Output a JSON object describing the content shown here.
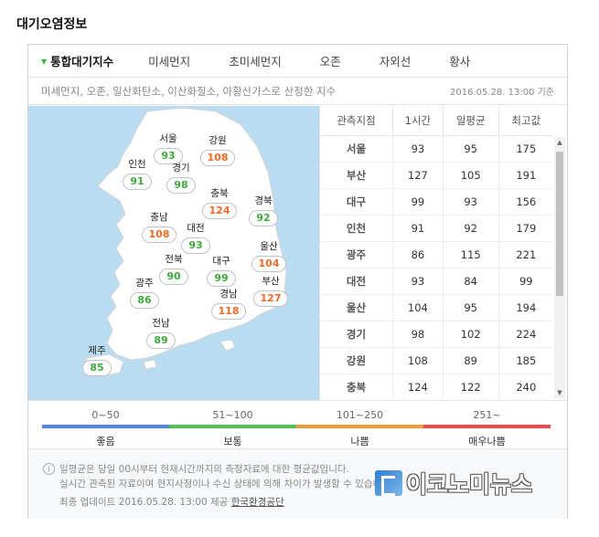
{
  "page_title": "대기오염정보",
  "tabs": [
    {
      "label": "통합대기지수",
      "active": true
    },
    {
      "label": "미세먼지"
    },
    {
      "label": "초미세먼지"
    },
    {
      "label": "오존"
    },
    {
      "label": "자외선"
    },
    {
      "label": "황사"
    }
  ],
  "description": "미세먼지, 오존, 일산화탄소, 이산화질소, 아황산가스로 산정한 지수",
  "timestamp": "2016.05.28. 13:00 기준",
  "map_markers": [
    {
      "name": "서울",
      "value": "93",
      "level": "good"
    },
    {
      "name": "강원",
      "value": "108",
      "level": "bad"
    },
    {
      "name": "인천",
      "value": "91",
      "level": "good"
    },
    {
      "name": "경기",
      "value": "98",
      "level": "good"
    },
    {
      "name": "충북",
      "value": "124",
      "level": "bad"
    },
    {
      "name": "충남",
      "value": "108",
      "level": "bad"
    },
    {
      "name": "대전",
      "value": "93",
      "level": "good"
    },
    {
      "name": "경북",
      "value": "92",
      "level": "good"
    },
    {
      "name": "전북",
      "value": "90",
      "level": "good"
    },
    {
      "name": "대구",
      "value": "99",
      "level": "good"
    },
    {
      "name": "울산",
      "value": "104",
      "level": "bad"
    },
    {
      "name": "광주",
      "value": "86",
      "level": "good"
    },
    {
      "name": "경남",
      "value": "118",
      "level": "bad"
    },
    {
      "name": "부산",
      "value": "127",
      "level": "bad"
    },
    {
      "name": "전남",
      "value": "89",
      "level": "good"
    },
    {
      "name": "제주",
      "value": "85",
      "level": "good"
    }
  ],
  "table": {
    "headers": [
      "관측지점",
      "1시간",
      "일평균",
      "최고값"
    ],
    "rows": [
      [
        "서울",
        "93",
        "95",
        "175"
      ],
      [
        "부산",
        "127",
        "105",
        "191"
      ],
      [
        "대구",
        "99",
        "93",
        "156"
      ],
      [
        "인천",
        "91",
        "92",
        "179"
      ],
      [
        "광주",
        "86",
        "115",
        "221"
      ],
      [
        "대전",
        "93",
        "84",
        "99"
      ],
      [
        "울산",
        "104",
        "95",
        "194"
      ],
      [
        "경기",
        "98",
        "102",
        "224"
      ],
      [
        "강원",
        "108",
        "89",
        "185"
      ],
      [
        "충북",
        "124",
        "122",
        "240"
      ]
    ]
  },
  "legend": [
    {
      "range": "0~50",
      "label": "좋음",
      "color": "#4f86e8"
    },
    {
      "range": "51~100",
      "label": "보통",
      "color": "#52c152"
    },
    {
      "range": "101~250",
      "label": "나쁨",
      "color": "#f39a3c"
    },
    {
      "range": "251~",
      "label": "매우나쁨",
      "color": "#ee4a4a"
    }
  ],
  "notes": {
    "line1": "일평균은 당일 00시부터 현재시간까지의 측정자료에 대한 평균값입니다.",
    "line2": "실시간 관측된 자료이며 현지사정이나 수신 상태에 의해 차이가 발생할 수 있습니다.",
    "update_prefix": "최종 업데이트 2016.05.28. 13:00 제공",
    "source": "한국환경공단"
  },
  "watermark": "이코노미뉴스",
  "colors": {
    "good": "#3fa93f",
    "bad": "#ef6a2a",
    "sea": "#b9dcf0",
    "land": "#ffffff"
  }
}
